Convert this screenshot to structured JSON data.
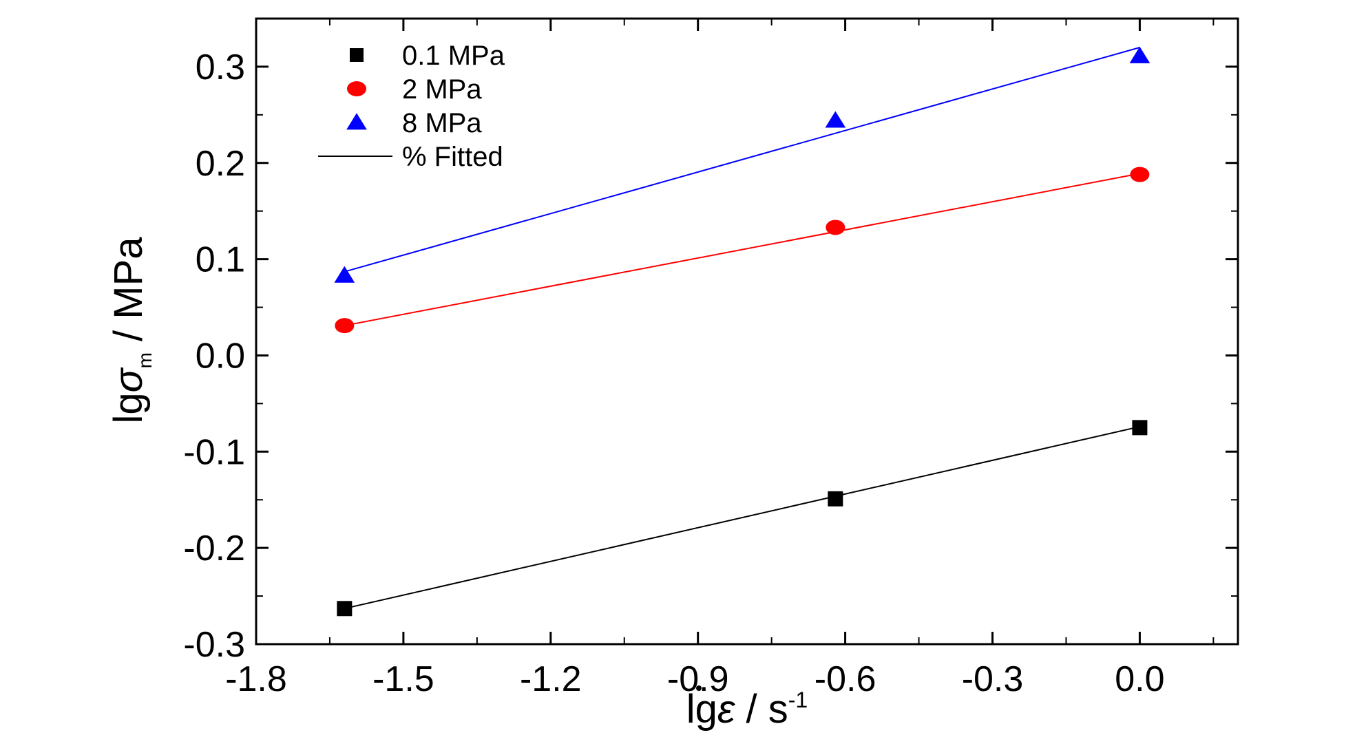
{
  "chart_data": {
    "type": "scatter",
    "x_ticks": [
      "-1.8",
      "-1.5",
      "-1.2",
      "-0.9",
      "-0.6",
      "-0.3",
      "0.0"
    ],
    "y_ticks": [
      "-0.3",
      "-0.2",
      "-0.1",
      "0.0",
      "0.1",
      "0.2",
      "0.3"
    ],
    "x_tick_values": [
      -1.8,
      -1.5,
      -1.2,
      -0.9,
      -0.6,
      -0.3,
      0.0
    ],
    "y_tick_values": [
      -0.3,
      -0.2,
      -0.1,
      0.0,
      0.1,
      0.2,
      0.3
    ],
    "xlim": [
      -1.8,
      0.2
    ],
    "ylim": [
      -0.3,
      0.35
    ],
    "xlabel": {
      "prefix": "lg",
      "symbol": "ε",
      "suffix": " / s",
      "superscript": "-1"
    },
    "ylabel": {
      "prefix": "lg",
      "symbol": "σ",
      "subscript": "m",
      "suffix": " / MPa"
    },
    "legend_position": "top-left",
    "grid": false,
    "fit_label": "% Fitted",
    "fit_color": "#000000",
    "series": [
      {
        "name": "0.1 MPa",
        "marker": "square",
        "color": "#000000",
        "x": [
          -1.62,
          -0.62,
          0.0
        ],
        "y": [
          -0.263,
          -0.149,
          -0.075
        ],
        "fit": [
          [
            -1.62,
            -0.263
          ],
          [
            0.0,
            -0.074
          ]
        ]
      },
      {
        "name": "2 MPa",
        "marker": "circle",
        "color": "#ff0000",
        "x": [
          -1.62,
          -0.62,
          0.0
        ],
        "y": [
          0.031,
          0.133,
          0.188
        ],
        "fit": [
          [
            -1.62,
            0.031
          ],
          [
            0.0,
            0.189
          ]
        ]
      },
      {
        "name": "8 MPa",
        "marker": "triangle",
        "color": "#0000ff",
        "x": [
          -1.62,
          -0.62,
          0.0
        ],
        "y": [
          0.083,
          0.244,
          0.311
        ],
        "fit": [
          [
            -1.62,
            0.087
          ],
          [
            0.0,
            0.32
          ]
        ]
      }
    ]
  }
}
